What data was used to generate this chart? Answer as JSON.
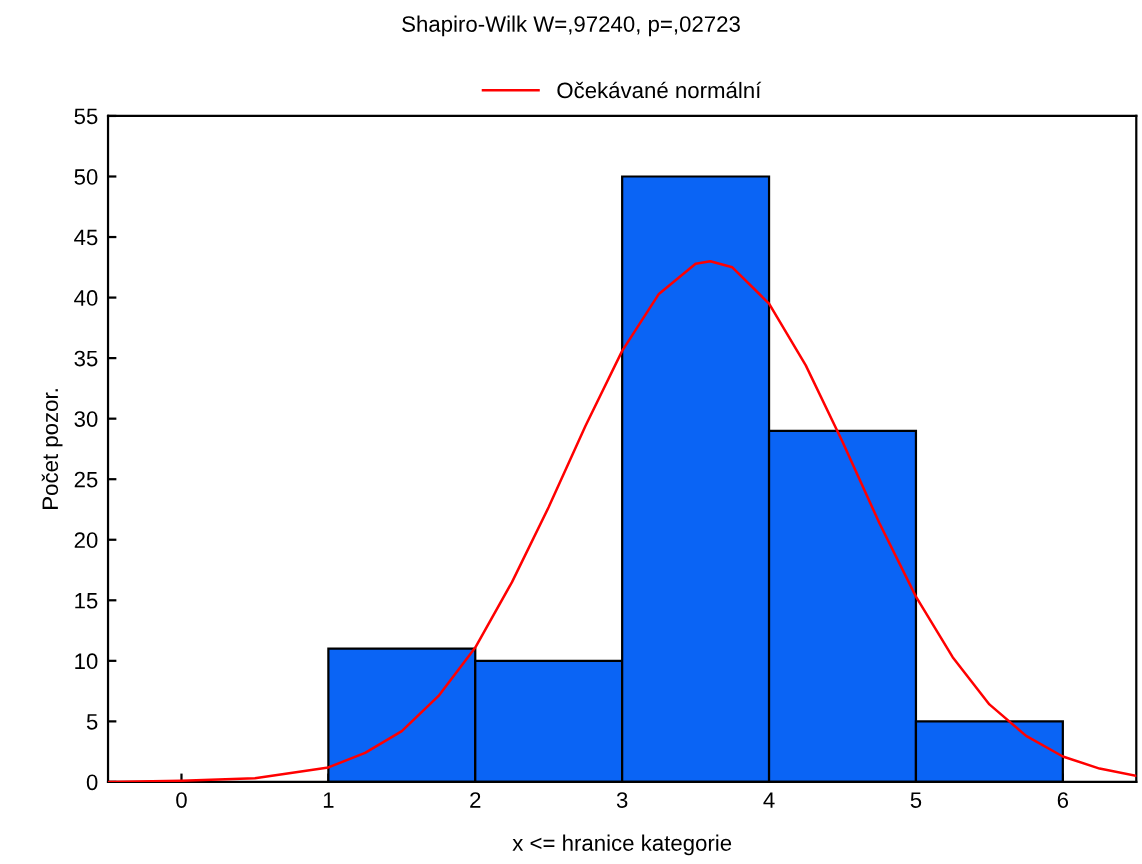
{
  "chart_data": {
    "type": "histogram",
    "title": "Shapiro-Wilk W=,97240, p=,02723",
    "xlabel": "x <= hranice kategorie",
    "ylabel": "Počet pozor.",
    "xlim": [
      -0.5,
      6.5
    ],
    "xticks": [
      0,
      1,
      2,
      3,
      4,
      5,
      6
    ],
    "ylim": [
      0,
      55
    ],
    "yticks": [
      0,
      5,
      10,
      15,
      20,
      25,
      30,
      35,
      40,
      45,
      50,
      55
    ],
    "grid": false,
    "legend": "top",
    "series": [
      {
        "color": "#0a64f5",
        "bins": [
          1,
          2,
          3,
          4,
          5,
          6
        ],
        "values": [
          11,
          10,
          50,
          29,
          5
        ]
      },
      {
        "type": "line",
        "name": "Očekávané normální",
        "color": "#ff0000",
        "x": [
          -0.5,
          0,
          0.5,
          1,
          1.25,
          1.5,
          1.75,
          2,
          2.25,
          2.5,
          2.75,
          3,
          3.25,
          3.5,
          3.6,
          3.75,
          4,
          4.25,
          4.5,
          4.75,
          5,
          5.25,
          5.5,
          5.75,
          6,
          6.25,
          6.5
        ],
        "values": [
          0,
          0.1,
          0.3,
          1.2,
          2.4,
          4.2,
          7.1,
          11.1,
          16.5,
          22.7,
          29.4,
          35.6,
          40.3,
          42.8,
          43,
          42.5,
          39.5,
          34.4,
          28.1,
          21.4,
          15.3,
          10.3,
          6.4,
          3.8,
          2.1,
          1.1,
          0.5
        ]
      }
    ]
  }
}
